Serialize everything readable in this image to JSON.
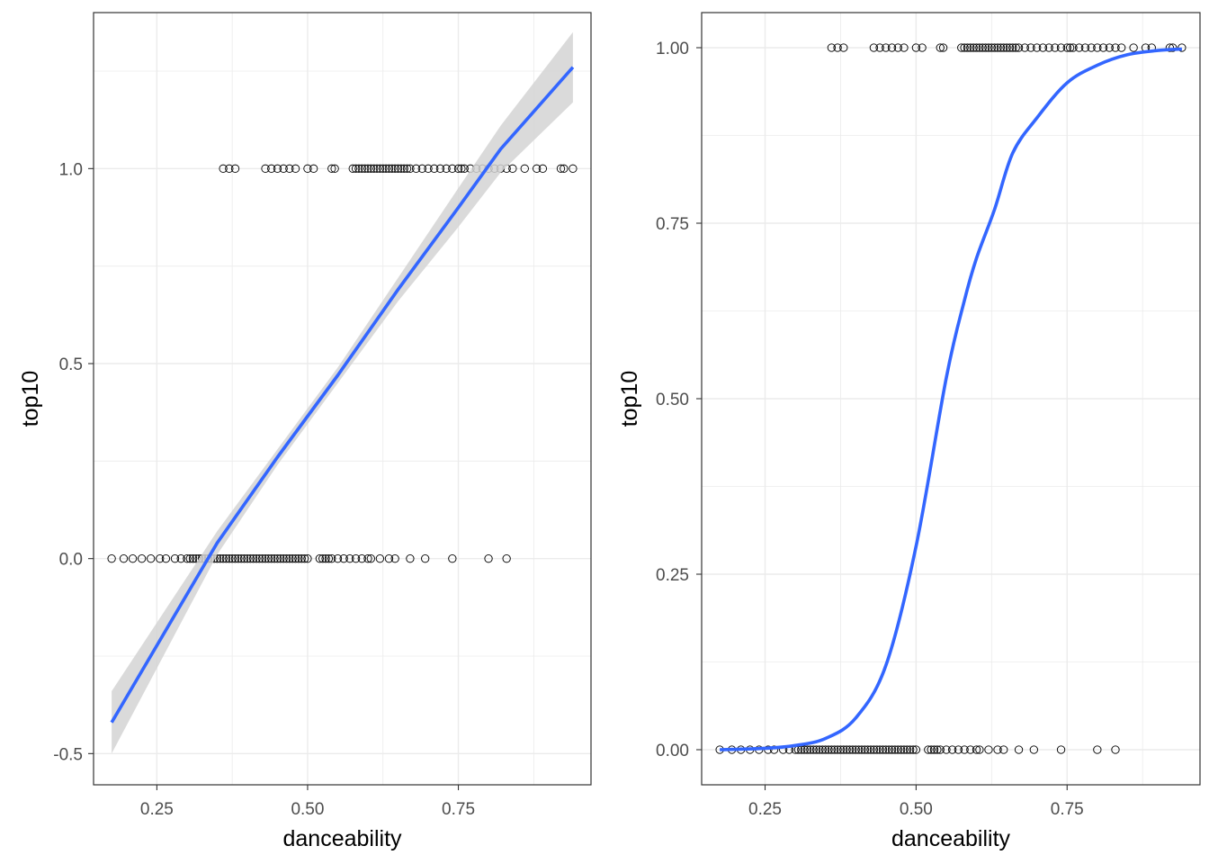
{
  "chart_data": [
    {
      "type": "scatter",
      "fit": "linear",
      "xlabel": "danceability",
      "ylabel": "top10",
      "xlim": [
        0.145,
        0.97
      ],
      "ylim": [
        -0.58,
        1.4
      ],
      "xticks": [
        0.25,
        0.5,
        0.75
      ],
      "xtick_labels": [
        "0.25",
        "0.50",
        "0.75"
      ],
      "xminor": [
        0.375,
        0.625,
        0.875
      ],
      "yticks": [
        -0.5,
        0,
        0.5,
        1
      ],
      "ytick_labels": [
        "-0.5",
        "0.0",
        "0.5",
        "1.0"
      ],
      "yminor": [
        -0.25,
        0.25,
        0.75,
        1.25
      ],
      "grid": true,
      "confidence_band": true,
      "fit_curve": {
        "x": [
          0.175,
          0.35,
          0.45,
          0.55,
          0.65,
          0.75,
          0.82,
          0.94
        ],
        "y": [
          -0.42,
          0.04,
          0.26,
          0.47,
          0.69,
          0.9,
          1.05,
          1.26
        ],
        "band_upper": [
          -0.34,
          0.07,
          0.28,
          0.49,
          0.72,
          0.95,
          1.11,
          1.35
        ],
        "band_lower": [
          -0.5,
          0.01,
          0.24,
          0.45,
          0.66,
          0.85,
          0.99,
          1.17
        ]
      },
      "points": [
        {
          "y": 1,
          "x": [
            0.36,
            0.37,
            0.38,
            0.43,
            0.44,
            0.45,
            0.46,
            0.47,
            0.48,
            0.5,
            0.51,
            0.54,
            0.545,
            0.575,
            0.58,
            0.585,
            0.59,
            0.595,
            0.6,
            0.605,
            0.61,
            0.615,
            0.62,
            0.625,
            0.63,
            0.635,
            0.64,
            0.645,
            0.65,
            0.655,
            0.66,
            0.665,
            0.67,
            0.68,
            0.69,
            0.7,
            0.71,
            0.72,
            0.73,
            0.74,
            0.75,
            0.755,
            0.76,
            0.77,
            0.78,
            0.79,
            0.8,
            0.81,
            0.82,
            0.83,
            0.84,
            0.86,
            0.88,
            0.89,
            0.92,
            0.925,
            0.94
          ]
        },
        {
          "y": 0,
          "x": [
            0.175,
            0.195,
            0.21,
            0.225,
            0.24,
            0.255,
            0.265,
            0.28,
            0.29,
            0.3,
            0.305,
            0.31,
            0.315,
            0.32,
            0.325,
            0.33,
            0.335,
            0.34,
            0.345,
            0.35,
            0.355,
            0.36,
            0.365,
            0.37,
            0.375,
            0.38,
            0.385,
            0.39,
            0.395,
            0.4,
            0.405,
            0.41,
            0.415,
            0.42,
            0.425,
            0.43,
            0.435,
            0.44,
            0.445,
            0.45,
            0.455,
            0.46,
            0.465,
            0.47,
            0.475,
            0.48,
            0.485,
            0.49,
            0.495,
            0.5,
            0.52,
            0.525,
            0.53,
            0.535,
            0.54,
            0.55,
            0.56,
            0.57,
            0.58,
            0.59,
            0.6,
            0.605,
            0.62,
            0.635,
            0.645,
            0.67,
            0.695,
            0.74,
            0.8,
            0.83
          ]
        }
      ],
      "colors": {
        "fit": "#3366FF",
        "band": "#D4D4D4",
        "grid": "#EBEBEB",
        "border": "#333333",
        "point": "#000000"
      }
    },
    {
      "type": "scatter",
      "fit": "logistic",
      "xlabel": "danceability",
      "ylabel": "top10",
      "xlim": [
        0.145,
        0.97
      ],
      "ylim": [
        -0.05,
        1.05
      ],
      "xticks": [
        0.25,
        0.5,
        0.75
      ],
      "xtick_labels": [
        "0.25",
        "0.50",
        "0.75"
      ],
      "xminor": [
        0.375,
        0.625,
        0.875
      ],
      "yticks": [
        0,
        0.25,
        0.5,
        0.75,
        1
      ],
      "ytick_labels": [
        "0.00",
        "0.25",
        "0.50",
        "0.75",
        "1.00"
      ],
      "yminor": [
        0.125,
        0.375,
        0.625,
        0.875
      ],
      "grid": true,
      "confidence_band": false,
      "fit_curve": {
        "x": [
          0.175,
          0.25,
          0.3,
          0.35,
          0.4,
          0.45,
          0.5,
          0.55,
          0.58,
          0.6,
          0.63,
          0.66,
          0.7,
          0.75,
          0.8,
          0.85,
          0.9,
          0.94
        ],
        "y": [
          0.0,
          0.002,
          0.006,
          0.016,
          0.045,
          0.12,
          0.29,
          0.53,
          0.64,
          0.7,
          0.77,
          0.85,
          0.9,
          0.95,
          0.975,
          0.99,
          0.996,
          0.998
        ]
      },
      "points": [
        {
          "y": 1,
          "x": [
            0.36,
            0.37,
            0.38,
            0.43,
            0.44,
            0.45,
            0.46,
            0.47,
            0.48,
            0.5,
            0.51,
            0.54,
            0.545,
            0.575,
            0.58,
            0.585,
            0.59,
            0.595,
            0.6,
            0.605,
            0.61,
            0.615,
            0.62,
            0.625,
            0.63,
            0.635,
            0.64,
            0.645,
            0.65,
            0.655,
            0.66,
            0.665,
            0.67,
            0.68,
            0.69,
            0.7,
            0.71,
            0.72,
            0.73,
            0.74,
            0.75,
            0.755,
            0.76,
            0.77,
            0.78,
            0.79,
            0.8,
            0.81,
            0.82,
            0.83,
            0.84,
            0.86,
            0.88,
            0.89,
            0.92,
            0.925,
            0.94
          ]
        },
        {
          "y": 0,
          "x": [
            0.175,
            0.195,
            0.21,
            0.225,
            0.24,
            0.255,
            0.265,
            0.28,
            0.29,
            0.3,
            0.305,
            0.31,
            0.315,
            0.32,
            0.325,
            0.33,
            0.335,
            0.34,
            0.345,
            0.35,
            0.355,
            0.36,
            0.365,
            0.37,
            0.375,
            0.38,
            0.385,
            0.39,
            0.395,
            0.4,
            0.405,
            0.41,
            0.415,
            0.42,
            0.425,
            0.43,
            0.435,
            0.44,
            0.445,
            0.45,
            0.455,
            0.46,
            0.465,
            0.47,
            0.475,
            0.48,
            0.485,
            0.49,
            0.495,
            0.5,
            0.52,
            0.525,
            0.53,
            0.535,
            0.54,
            0.55,
            0.56,
            0.57,
            0.58,
            0.59,
            0.6,
            0.605,
            0.62,
            0.635,
            0.645,
            0.67,
            0.695,
            0.74,
            0.8,
            0.83
          ]
        }
      ],
      "colors": {
        "fit": "#3366FF",
        "band": "#D4D4D4",
        "grid": "#EBEBEB",
        "border": "#333333",
        "point": "#000000"
      }
    }
  ]
}
